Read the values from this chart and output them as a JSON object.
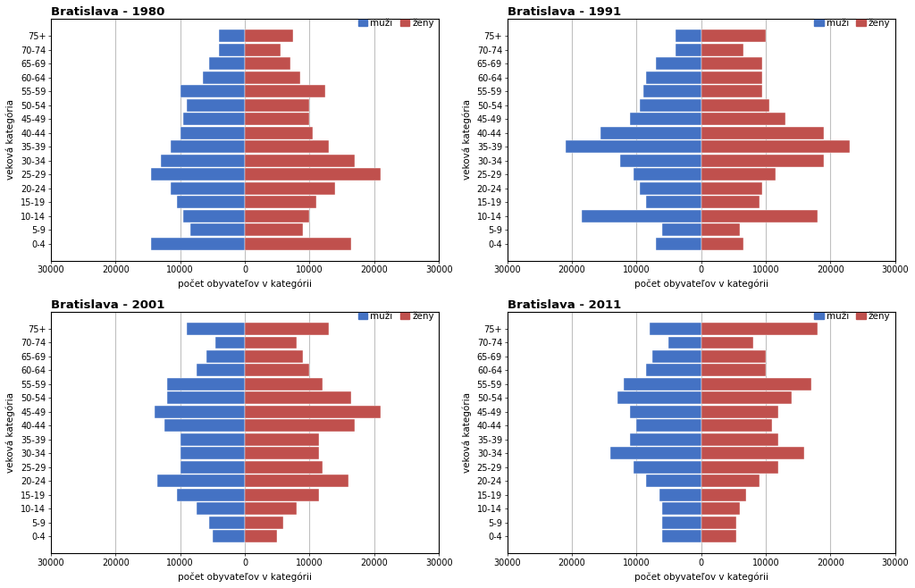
{
  "age_categories": [
    "0-4",
    "5-9",
    "10-14",
    "15-19",
    "20-24",
    "25-29",
    "30-34",
    "35-39",
    "40-44",
    "45-49",
    "50-54",
    "55-59",
    "60-64",
    "65-69",
    "70-74",
    "75+"
  ],
  "years": [
    "1980",
    "1991",
    "2001",
    "2011"
  ],
  "titles": [
    "Bratislava - 1980",
    "Bratislava - 1991",
    "Bratislava - 2001",
    "Bratislava - 2011"
  ],
  "male_color": "#4472C4",
  "female_color": "#C0504D",
  "xlabel": "počet obyvateľov v kategórii",
  "ylabel": "veková kategória",
  "legend_male": "muži",
  "legend_female": "ženy",
  "xlim": 30000,
  "xticks": [
    -30000,
    -20000,
    -10000,
    0,
    10000,
    20000,
    30000
  ],
  "xticklabels": [
    "30000",
    "20000",
    "10000",
    "0",
    "10000",
    "20000",
    "30000"
  ],
  "data": {
    "1980": {
      "male": [
        14500,
        8500,
        9500,
        10500,
        11500,
        14500,
        13000,
        11500,
        10000,
        9500,
        9000,
        10000,
        6500,
        5500,
        4000,
        4000
      ],
      "female": [
        16500,
        9000,
        10000,
        11000,
        14000,
        21000,
        17000,
        13000,
        10500,
        10000,
        10000,
        12500,
        8500,
        7000,
        5500,
        7500
      ]
    },
    "1991": {
      "male": [
        7000,
        6000,
        18500,
        8500,
        9500,
        10500,
        12500,
        21000,
        15500,
        11000,
        9500,
        9000,
        8500,
        7000,
        4000,
        4000
      ],
      "female": [
        6500,
        6000,
        18000,
        9000,
        9500,
        11500,
        19000,
        23000,
        19000,
        13000,
        10500,
        9500,
        9500,
        9500,
        6500,
        10000
      ]
    },
    "2001": {
      "male": [
        5000,
        5500,
        7500,
        10500,
        13500,
        10000,
        10000,
        10000,
        12500,
        14000,
        12000,
        12000,
        7500,
        6000,
        4500,
        9000
      ],
      "female": [
        5000,
        6000,
        8000,
        11500,
        16000,
        12000,
        11500,
        11500,
        17000,
        21000,
        16500,
        12000,
        10000,
        9000,
        8000,
        13000
      ]
    },
    "2011": {
      "male": [
        6000,
        6000,
        6000,
        6500,
        8500,
        10500,
        14000,
        11000,
        10000,
        11000,
        13000,
        12000,
        8500,
        7500,
        5000,
        8000
      ],
      "female": [
        5500,
        5500,
        6000,
        7000,
        9000,
        12000,
        16000,
        12000,
        11000,
        12000,
        14000,
        17000,
        10000,
        10000,
        8000,
        18000
      ]
    }
  },
  "background_color": "#FFFFFF",
  "grid_color": "#C0C0C0",
  "bar_edgecolor": "white",
  "bar_linewidth": 0.3
}
